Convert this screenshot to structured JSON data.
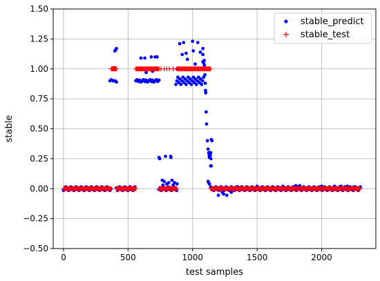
{
  "chart_data": {
    "type": "scatter",
    "xlabel": "test samples",
    "ylabel": "stable",
    "xlim": [
      -80,
      2420
    ],
    "ylim": [
      -0.5,
      1.5
    ],
    "x_ticks": [
      0,
      500,
      1000,
      1500,
      2000
    ],
    "x_tick_labels": [
      "0",
      "500",
      "1000",
      "1500",
      "2000"
    ],
    "y_ticks": [
      -0.5,
      -0.25,
      0.0,
      0.25,
      0.5,
      0.75,
      1.0,
      1.25,
      1.5
    ],
    "y_tick_labels": [
      "−0.50",
      "−0.25",
      "0.00",
      "0.25",
      "0.50",
      "0.75",
      "1.00",
      "1.25",
      "1.50"
    ],
    "grid": true,
    "legend_position": "top-right",
    "series": [
      {
        "name": "stable_predict",
        "marker": "dot",
        "color": "#0000ff",
        "segments": [
          {
            "x_start": 0,
            "x_end": 370,
            "step": 8,
            "base": 0.0,
            "spread": 0.015
          },
          {
            "x_start": 410,
            "x_end": 560,
            "step": 8,
            "base": 0.0,
            "spread": 0.015
          },
          {
            "x_start": 740,
            "x_end": 880,
            "step": 8,
            "base": 0.0,
            "spread": 0.015
          },
          {
            "x_start": 1140,
            "x_end": 2300,
            "step": 8,
            "base": 0.0,
            "spread": 0.015
          },
          {
            "x_start": 560,
            "x_end": 740,
            "step": 10,
            "base": 0.9,
            "spread": 0.01
          },
          {
            "x_start": 870,
            "x_end": 1090,
            "step": 8,
            "base": 0.9,
            "spread": 0.03
          }
        ],
        "points": [
          [
            360,
            0.9
          ],
          [
            370,
            0.91
          ],
          [
            385,
            0.9
          ],
          [
            395,
            0.9
          ],
          [
            400,
            0.9
          ],
          [
            410,
            0.89
          ],
          [
            380,
            1.0
          ],
          [
            395,
            1.01
          ],
          [
            405,
            1.16
          ],
          [
            410,
            1.17
          ],
          [
            398,
            1.15
          ],
          [
            600,
            1.09
          ],
          [
            630,
            1.09
          ],
          [
            680,
            1.1
          ],
          [
            710,
            1.1
          ],
          [
            725,
            1.1
          ],
          [
            600,
            1.0
          ],
          [
            640,
            0.97
          ],
          [
            690,
            0.98
          ],
          [
            720,
            1.0
          ],
          [
            740,
            0.26
          ],
          [
            745,
            0.25
          ],
          [
            790,
            0.27
          ],
          [
            830,
            0.27
          ],
          [
            832,
            0.26
          ],
          [
            765,
            0.07
          ],
          [
            780,
            0.06
          ],
          [
            800,
            0.04
          ],
          [
            815,
            0.05
          ],
          [
            840,
            0.07
          ],
          [
            860,
            0.05
          ],
          [
            880,
            0.04
          ],
          [
            770,
            0.03
          ],
          [
            850,
            0.03
          ],
          [
            900,
            1.21
          ],
          [
            930,
            1.22
          ],
          [
            1000,
            1.23
          ],
          [
            1040,
            1.22
          ],
          [
            1080,
            1.17
          ],
          [
            920,
            1.12
          ],
          [
            950,
            1.13
          ],
          [
            1005,
            1.15
          ],
          [
            1060,
            1.14
          ],
          [
            1080,
            1.12
          ],
          [
            880,
            1.0
          ],
          [
            960,
            1.08
          ],
          [
            1020,
            1.04
          ],
          [
            1080,
            1.06
          ],
          [
            1085,
            1.05
          ],
          [
            1090,
            1.07
          ],
          [
            1092,
            1.03
          ],
          [
            1095,
            0.95
          ],
          [
            1098,
            0.88
          ],
          [
            1100,
            0.82
          ],
          [
            1102,
            0.8
          ],
          [
            1105,
            0.64
          ],
          [
            1108,
            0.54
          ],
          [
            1115,
            0.4
          ],
          [
            1120,
            0.33
          ],
          [
            1125,
            0.3
          ],
          [
            1128,
            0.28
          ],
          [
            1130,
            0.26
          ],
          [
            1135,
            0.3
          ],
          [
            1140,
            0.3
          ],
          [
            1145,
            0.41
          ],
          [
            1150,
            0.4
          ],
          [
            1138,
            0.28
          ],
          [
            1142,
            0.25
          ],
          [
            1140,
            0.19
          ],
          [
            1145,
            0.19
          ],
          [
            1120,
            0.06
          ],
          [
            1125,
            0.05
          ],
          [
            1130,
            0.04
          ],
          [
            1200,
            -0.055
          ],
          [
            1240,
            -0.045
          ],
          [
            1265,
            -0.055
          ],
          [
            1230,
            -0.03
          ],
          [
            1300,
            -0.03
          ],
          [
            1350,
            0.015
          ],
          [
            1500,
            0.02
          ],
          [
            1700,
            0.02
          ],
          [
            1800,
            0.025
          ],
          [
            1830,
            0.025
          ],
          [
            2000,
            0.02
          ],
          [
            2100,
            0.02
          ],
          [
            2150,
            0.02
          ],
          [
            2200,
            0.02
          ],
          [
            2250,
            0.015
          ]
        ]
      },
      {
        "name": "stable_test",
        "marker": "plus",
        "color": "#ff0000",
        "segments": [
          {
            "x_start": 0,
            "x_end": 370,
            "step": 6,
            "base": 0.0,
            "spread": 0.0
          },
          {
            "x_start": 410,
            "x_end": 560,
            "step": 6,
            "base": 0.0,
            "spread": 0.0
          },
          {
            "x_start": 740,
            "x_end": 880,
            "step": 6,
            "base": 0.0,
            "spread": 0.0
          },
          {
            "x_start": 1140,
            "x_end": 2300,
            "step": 6,
            "base": 0.0,
            "spread": 0.0
          },
          {
            "x_start": 370,
            "x_end": 410,
            "step": 4,
            "base": 1.0,
            "spread": 0.0
          },
          {
            "x_start": 560,
            "x_end": 740,
            "step": 6,
            "base": 1.0,
            "spread": 0.0
          },
          {
            "x_start": 880,
            "x_end": 1140,
            "step": 6,
            "base": 1.0,
            "spread": 0.0
          }
        ],
        "points": [
          [
            755,
            1.0
          ],
          [
            780,
            1.0
          ],
          [
            800,
            1.0
          ],
          [
            820,
            1.0
          ],
          [
            850,
            1.0
          ]
        ]
      }
    ]
  }
}
